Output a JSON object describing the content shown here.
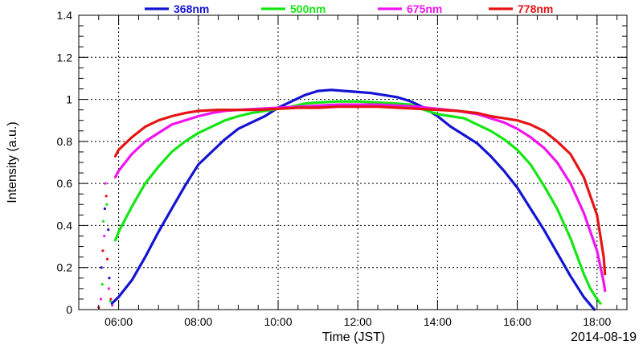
{
  "chart_data": {
    "type": "line",
    "title": "",
    "xlabel": "Time (JST)",
    "ylabel": "Intensity (a.u.)",
    "date_label": "2014-08-19",
    "xlim": [
      "05:00",
      "18:45"
    ],
    "ylim": [
      0,
      1.4
    ],
    "x_ticks": [
      "06:00",
      "08:00",
      "10:00",
      "12:00",
      "14:00",
      "16:00",
      "18:00"
    ],
    "y_ticks": [
      "0",
      "0.2",
      "0.4",
      "0.6",
      "0.8",
      "1",
      "1.2",
      "1.4"
    ],
    "grid": true,
    "legend_position": "top",
    "series": [
      {
        "name": "368nm",
        "color": "#1414d2",
        "points": [
          [
            "05:50",
            0.03
          ],
          [
            "06:00",
            0.06
          ],
          [
            "06:20",
            0.14
          ],
          [
            "06:40",
            0.25
          ],
          [
            "07:00",
            0.37
          ],
          [
            "07:20",
            0.48
          ],
          [
            "07:40",
            0.59
          ],
          [
            "08:00",
            0.69
          ],
          [
            "08:20",
            0.75
          ],
          [
            "08:40",
            0.81
          ],
          [
            "09:00",
            0.86
          ],
          [
            "09:20",
            0.89
          ],
          [
            "09:40",
            0.92
          ],
          [
            "10:00",
            0.96
          ],
          [
            "10:20",
            0.99
          ],
          [
            "10:40",
            1.02
          ],
          [
            "11:00",
            1.04
          ],
          [
            "11:20",
            1.045
          ],
          [
            "11:40",
            1.04
          ],
          [
            "12:00",
            1.035
          ],
          [
            "12:20",
            1.03
          ],
          [
            "12:40",
            1.02
          ],
          [
            "13:00",
            1.01
          ],
          [
            "13:20",
            0.99
          ],
          [
            "13:40",
            0.96
          ],
          [
            "14:00",
            0.92
          ],
          [
            "14:20",
            0.87
          ],
          [
            "14:40",
            0.83
          ],
          [
            "15:00",
            0.79
          ],
          [
            "15:20",
            0.73
          ],
          [
            "15:40",
            0.66
          ],
          [
            "16:00",
            0.58
          ],
          [
            "16:20",
            0.48
          ],
          [
            "16:40",
            0.38
          ],
          [
            "17:00",
            0.27
          ],
          [
            "17:20",
            0.16
          ],
          [
            "17:40",
            0.06
          ],
          [
            "17:56",
            0.0
          ]
        ]
      },
      {
        "name": "500nm",
        "color": "#14e614",
        "points": [
          [
            "05:55",
            0.33
          ],
          [
            "06:00",
            0.37
          ],
          [
            "06:20",
            0.49
          ],
          [
            "06:40",
            0.6
          ],
          [
            "07:00",
            0.68
          ],
          [
            "07:20",
            0.75
          ],
          [
            "07:40",
            0.8
          ],
          [
            "08:00",
            0.84
          ],
          [
            "08:20",
            0.87
          ],
          [
            "08:40",
            0.9
          ],
          [
            "09:00",
            0.92
          ],
          [
            "09:20",
            0.935
          ],
          [
            "09:40",
            0.945
          ],
          [
            "10:00",
            0.955
          ],
          [
            "10:20",
            0.965
          ],
          [
            "10:40",
            0.98
          ],
          [
            "11:00",
            0.985
          ],
          [
            "11:30",
            0.99
          ],
          [
            "12:00",
            0.99
          ],
          [
            "12:30",
            0.985
          ],
          [
            "13:00",
            0.98
          ],
          [
            "13:20",
            0.975
          ],
          [
            "13:40",
            0.95
          ],
          [
            "14:00",
            0.93
          ],
          [
            "14:20",
            0.92
          ],
          [
            "14:40",
            0.91
          ],
          [
            "15:00",
            0.88
          ],
          [
            "15:20",
            0.85
          ],
          [
            "15:40",
            0.81
          ],
          [
            "16:00",
            0.76
          ],
          [
            "16:20",
            0.69
          ],
          [
            "16:40",
            0.59
          ],
          [
            "17:00",
            0.48
          ],
          [
            "17:20",
            0.34
          ],
          [
            "17:40",
            0.17
          ],
          [
            "17:50",
            0.1
          ],
          [
            "18:00",
            0.05
          ],
          [
            "18:05",
            0.03
          ]
        ]
      },
      {
        "name": "675nm",
        "color": "#f014f0",
        "points": [
          [
            "05:55",
            0.63
          ],
          [
            "06:00",
            0.66
          ],
          [
            "06:20",
            0.74
          ],
          [
            "06:40",
            0.8
          ],
          [
            "07:00",
            0.84
          ],
          [
            "07:20",
            0.88
          ],
          [
            "07:40",
            0.9
          ],
          [
            "08:00",
            0.92
          ],
          [
            "08:20",
            0.935
          ],
          [
            "08:40",
            0.945
          ],
          [
            "09:00",
            0.95
          ],
          [
            "09:30",
            0.955
          ],
          [
            "10:00",
            0.96
          ],
          [
            "10:30",
            0.965
          ],
          [
            "11:00",
            0.97
          ],
          [
            "11:30",
            0.975
          ],
          [
            "12:00",
            0.975
          ],
          [
            "12:30",
            0.975
          ],
          [
            "13:00",
            0.97
          ],
          [
            "13:30",
            0.965
          ],
          [
            "14:00",
            0.955
          ],
          [
            "14:30",
            0.945
          ],
          [
            "15:00",
            0.93
          ],
          [
            "15:20",
            0.91
          ],
          [
            "15:40",
            0.89
          ],
          [
            "16:00",
            0.86
          ],
          [
            "16:20",
            0.82
          ],
          [
            "16:40",
            0.77
          ],
          [
            "17:00",
            0.7
          ],
          [
            "17:20",
            0.6
          ],
          [
            "17:40",
            0.46
          ],
          [
            "18:00",
            0.28
          ],
          [
            "18:10",
            0.13
          ],
          [
            "18:12",
            0.09
          ]
        ]
      },
      {
        "name": "778nm",
        "color": "#e61414",
        "points": [
          [
            "05:55",
            0.73
          ],
          [
            "06:00",
            0.76
          ],
          [
            "06:20",
            0.82
          ],
          [
            "06:40",
            0.87
          ],
          [
            "07:00",
            0.9
          ],
          [
            "07:20",
            0.92
          ],
          [
            "07:40",
            0.935
          ],
          [
            "08:00",
            0.945
          ],
          [
            "08:30",
            0.95
          ],
          [
            "09:00",
            0.95
          ],
          [
            "09:30",
            0.95
          ],
          [
            "10:00",
            0.955
          ],
          [
            "10:30",
            0.96
          ],
          [
            "11:00",
            0.96
          ],
          [
            "11:30",
            0.965
          ],
          [
            "12:00",
            0.965
          ],
          [
            "12:30",
            0.965
          ],
          [
            "13:00",
            0.96
          ],
          [
            "13:30",
            0.955
          ],
          [
            "14:00",
            0.95
          ],
          [
            "14:30",
            0.945
          ],
          [
            "15:00",
            0.935
          ],
          [
            "15:20",
            0.92
          ],
          [
            "15:40",
            0.91
          ],
          [
            "16:00",
            0.9
          ],
          [
            "16:20",
            0.88
          ],
          [
            "16:40",
            0.85
          ],
          [
            "17:00",
            0.8
          ],
          [
            "17:20",
            0.74
          ],
          [
            "17:40",
            0.63
          ],
          [
            "18:00",
            0.45
          ],
          [
            "18:10",
            0.25
          ],
          [
            "18:12",
            0.17
          ]
        ]
      }
    ],
    "early_scatter": {
      "colors": [
        "#e61414",
        "#f014f0",
        "#14e614",
        "#1414d2"
      ],
      "points": [
        [
          "05:30",
          0.01
        ],
        [
          "05:32",
          0.05
        ],
        [
          "05:33",
          0.12
        ],
        [
          "05:34",
          0.2
        ],
        [
          "05:35",
          0.28
        ],
        [
          "05:36",
          0.35
        ],
        [
          "05:37",
          0.42
        ],
        [
          "05:38",
          0.48
        ],
        [
          "05:39",
          0.54
        ],
        [
          "05:40",
          0.6
        ],
        [
          "05:41",
          0.5
        ],
        [
          "05:42",
          0.38
        ],
        [
          "05:43",
          0.24
        ],
        [
          "05:44",
          0.1
        ],
        [
          "05:45",
          0.04
        ],
        [
          "05:46",
          0.15
        ],
        [
          "05:47",
          0.05
        ],
        [
          "05:48",
          0.02
        ]
      ]
    }
  }
}
